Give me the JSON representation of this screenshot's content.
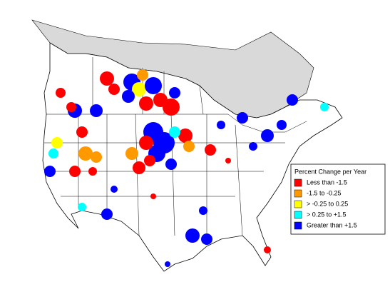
{
  "legend": {
    "title": "Percent Change per Year",
    "items": [
      {
        "label": "Less than -1.5",
        "color": "#ff0000"
      },
      {
        "label": "-1.5 to -0.25",
        "color": "#ff9900"
      },
      {
        "label": "> -0.25 to 0.25",
        "color": "#ffff00"
      },
      {
        "label": "> 0.25 to +1.5",
        "color": "#00ffff"
      },
      {
        "label": "Greater than +1.5",
        "color": "#0000ff"
      }
    ]
  }
}
